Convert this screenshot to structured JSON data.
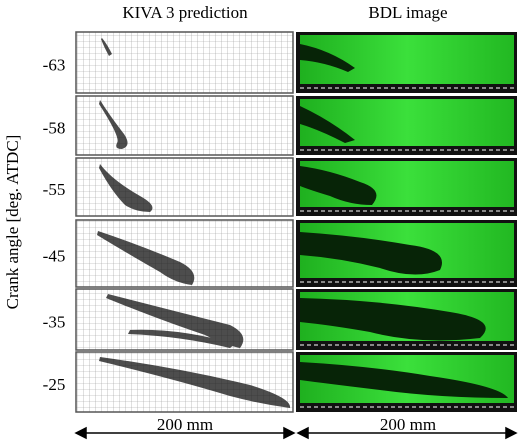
{
  "header": {
    "left": "KIVA 3 prediction",
    "right": "BDL image"
  },
  "y_axis_label": "Crank angle [deg. ATDC]",
  "rows": [
    "-63",
    "-58",
    "-55",
    "-45",
    "-35",
    "-25"
  ],
  "scale": {
    "left": "200 mm",
    "right": "200 mm"
  }
}
